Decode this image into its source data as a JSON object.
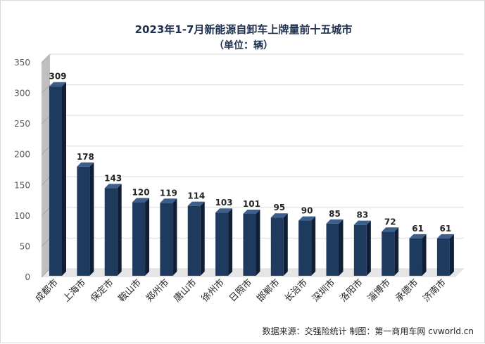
{
  "chart_data": {
    "type": "bar",
    "title": "2023年1-7月新能源自卸车上牌量前十五城市",
    "subtitle": "（单位：辆）",
    "categories": [
      "成都市",
      "上海市",
      "保定市",
      "鞍山市",
      "郑州市",
      "唐山市",
      "徐州市",
      "日照市",
      "邯郸市",
      "长治市",
      "深圳市",
      "洛阳市",
      "淄博市",
      "承德市",
      "济南市"
    ],
    "values": [
      309,
      178,
      143,
      120,
      119,
      114,
      103,
      101,
      95,
      90,
      85,
      83,
      72,
      61,
      61
    ],
    "ylim": [
      0,
      350
    ],
    "yticks": [
      0,
      50,
      100,
      150,
      200,
      250,
      300,
      350
    ],
    "xlabel": "",
    "ylabel": "",
    "grid": true,
    "source": "数据来源：交强险统计  制图：第一商用车网 cvworld.cn",
    "colors": {
      "bar_front": "#1f3a5f",
      "bar_top": "#3d5f8c",
      "bar_side": "#101f36",
      "grid": "#d9d9d9",
      "wall": "#bfbfbf"
    }
  }
}
